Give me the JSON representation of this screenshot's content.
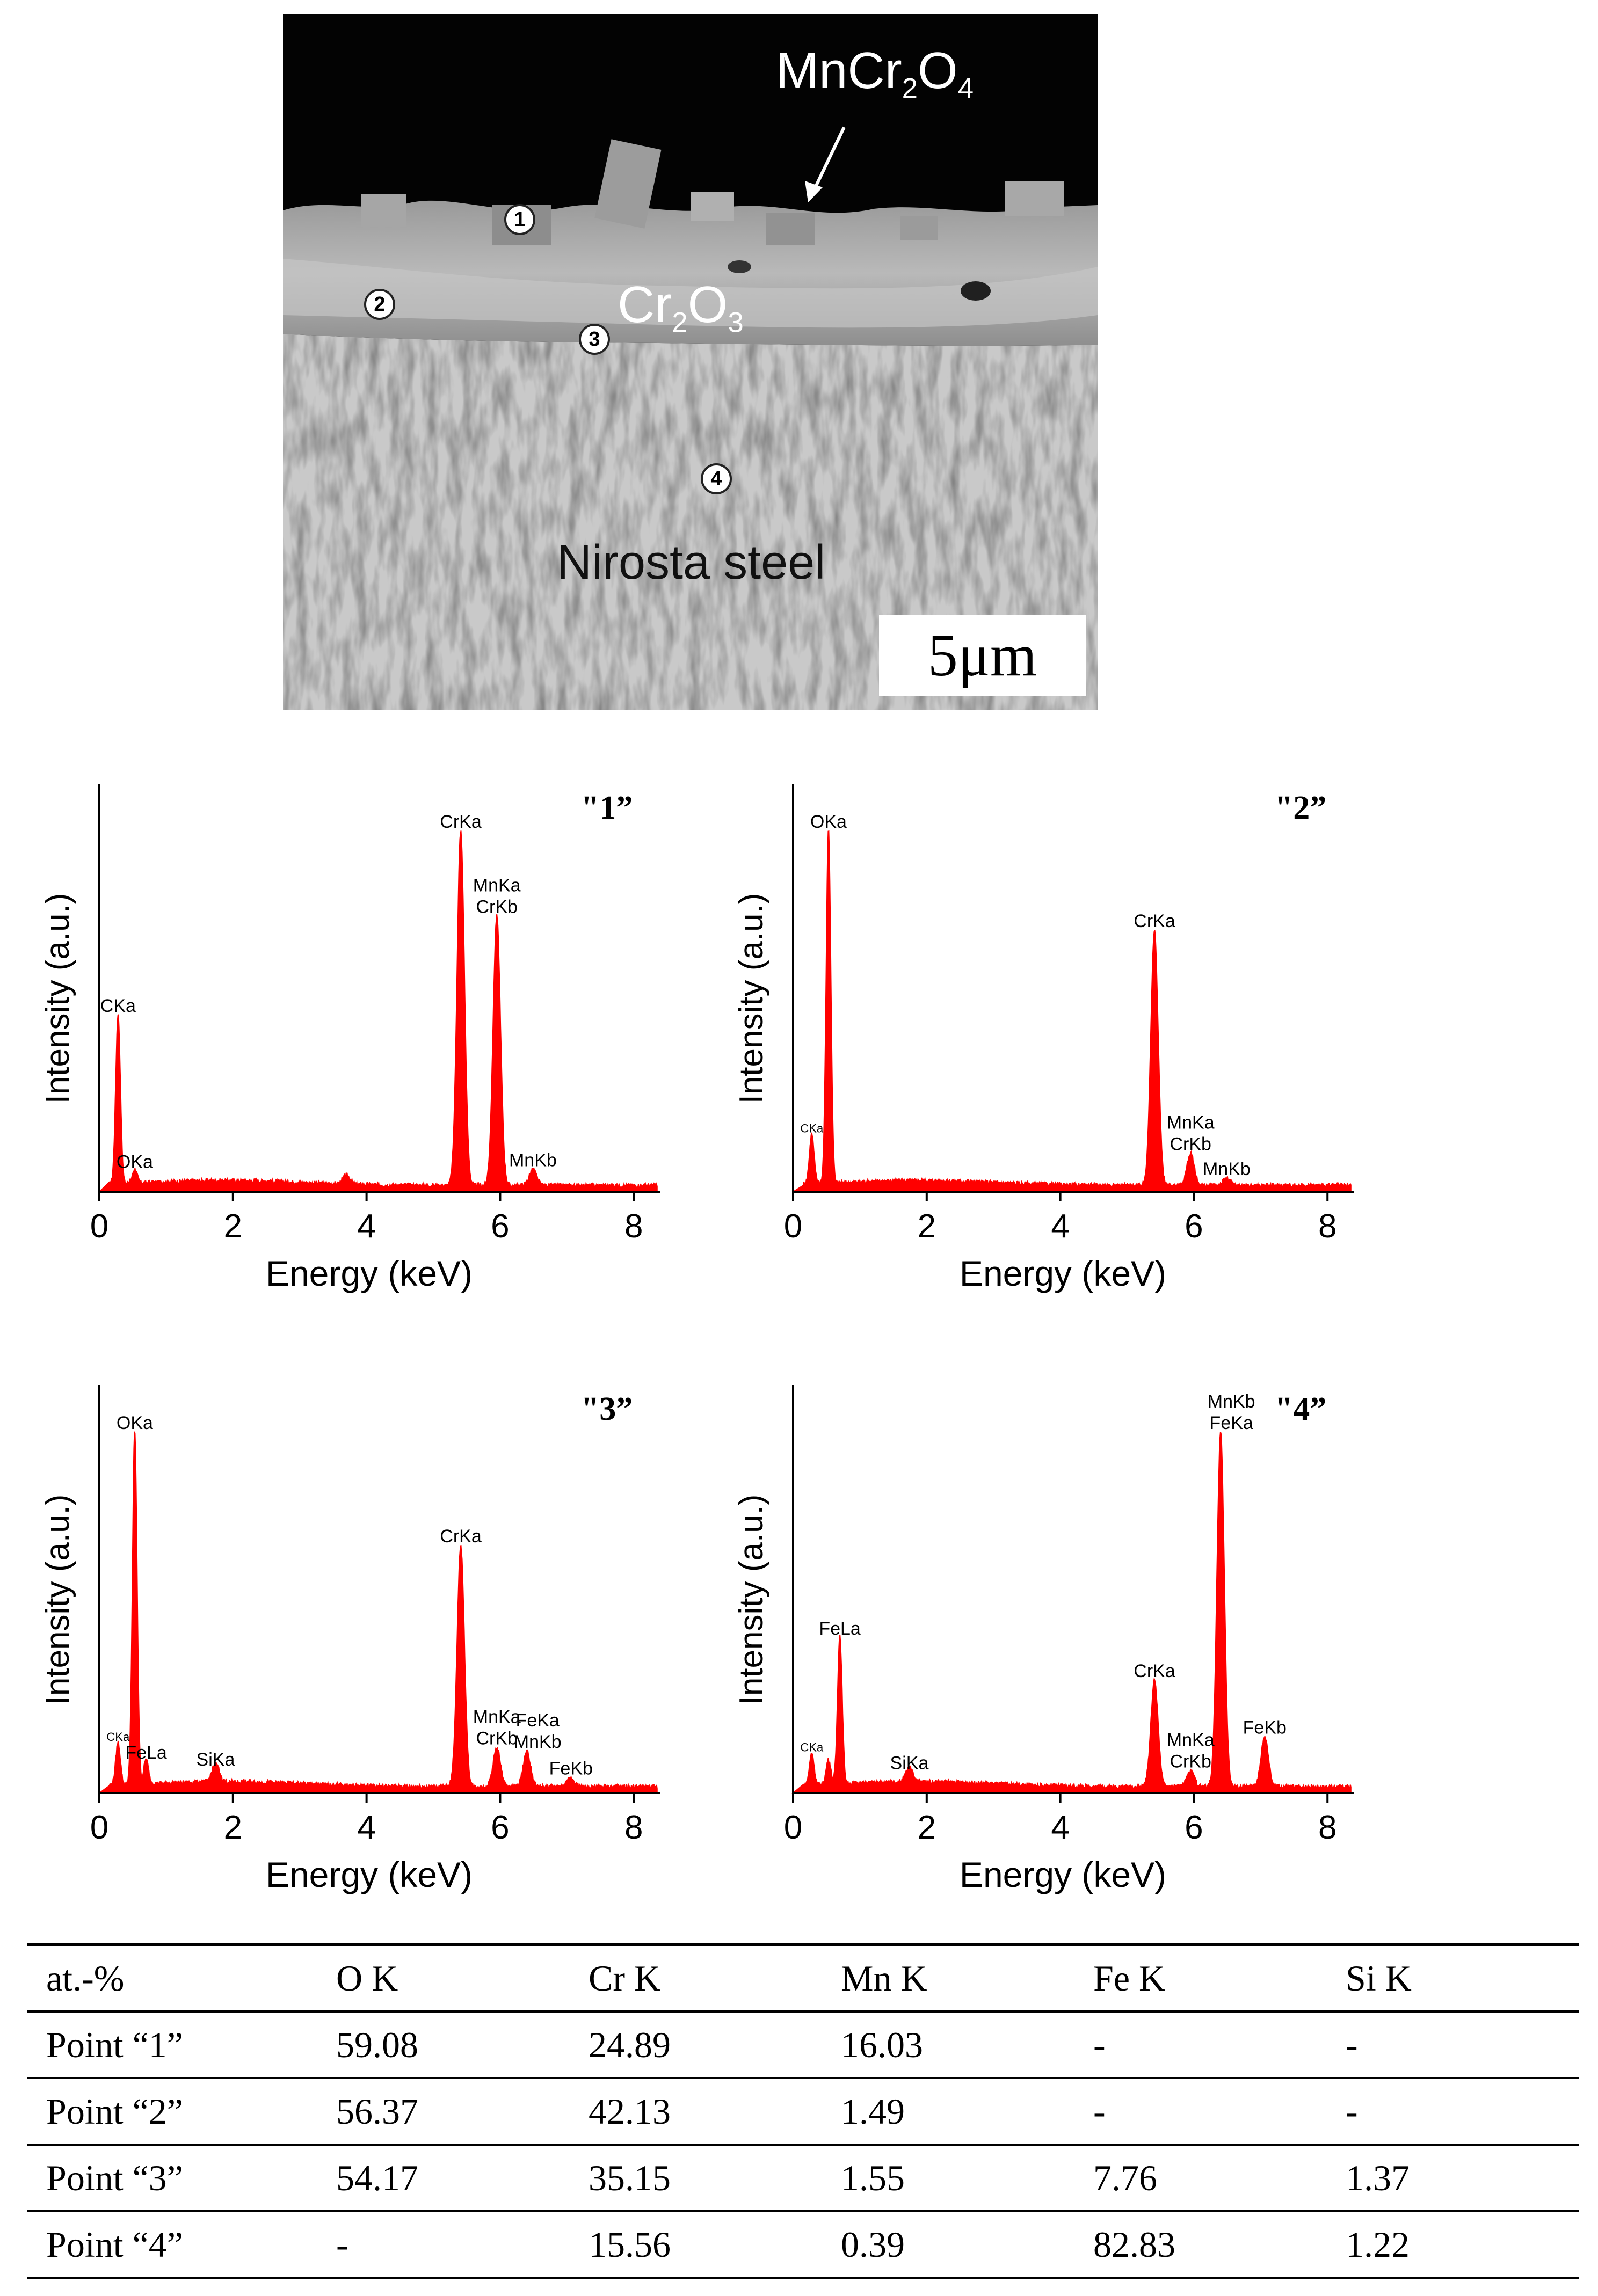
{
  "micrograph": {
    "labels": {
      "spinel": {
        "main": "MnCr",
        "sub1": "2",
        "mid": "O",
        "sub2": "4"
      },
      "chromia": {
        "main": "Cr",
        "sub1": "2",
        "mid": "O",
        "sub2": "3"
      },
      "substrate": "Nirosta steel"
    },
    "points": [
      "1",
      "2",
      "3",
      "4"
    ],
    "scale_bar": "5μm"
  },
  "chart_data": [
    {
      "type": "line",
      "title": "\"1”",
      "xlabel": "Energy (keV)",
      "ylabel": "Intensity (a.u.)",
      "xlim": [
        0,
        8.4
      ],
      "x_ticks": [
        0,
        2,
        4,
        6,
        8
      ],
      "color": "#ff0000",
      "peaks": [
        {
          "x": 0.28,
          "y": 0.48,
          "label": "CKa"
        },
        {
          "x": 0.53,
          "y": 0.04,
          "label": "OKa"
        },
        {
          "x": 3.7,
          "y": 0.025,
          "label": ""
        },
        {
          "x": 5.41,
          "y": 1.0,
          "label": "CrKa"
        },
        {
          "x": 5.95,
          "y": 0.76,
          "label": "MnKa\nCrKb"
        },
        {
          "x": 6.49,
          "y": 0.045,
          "label": "MnKb"
        }
      ]
    },
    {
      "type": "line",
      "title": "\"2”",
      "xlabel": "Energy (keV)",
      "ylabel": "Intensity (a.u.)",
      "xlim": [
        0,
        8.4
      ],
      "x_ticks": [
        0,
        2,
        4,
        6,
        8
      ],
      "color": "#ff0000",
      "peaks": [
        {
          "x": 0.28,
          "y": 0.14,
          "label": "CKa"
        },
        {
          "x": 0.53,
          "y": 1.0,
          "label": "OKa"
        },
        {
          "x": 5.41,
          "y": 0.72,
          "label": "CrKa"
        },
        {
          "x": 5.95,
          "y": 0.09,
          "label": "MnKa\nCrKb"
        },
        {
          "x": 6.49,
          "y": 0.02,
          "label": "MnKb"
        }
      ]
    },
    {
      "type": "line",
      "title": "\"3”",
      "xlabel": "Energy (keV)",
      "ylabel": "Intensity (a.u.)",
      "xlim": [
        0,
        8.4
      ],
      "x_ticks": [
        0,
        2,
        4,
        6,
        8
      ],
      "color": "#ff0000",
      "peaks": [
        {
          "x": 0.28,
          "y": 0.12,
          "label": "CKa"
        },
        {
          "x": 0.53,
          "y": 1.0,
          "label": "OKa"
        },
        {
          "x": 0.7,
          "y": 0.07,
          "label": "FeLa"
        },
        {
          "x": 1.74,
          "y": 0.05,
          "label": "SiKa"
        },
        {
          "x": 5.41,
          "y": 0.68,
          "label": "CrKa"
        },
        {
          "x": 5.95,
          "y": 0.11,
          "label": "MnKa\nCrKb"
        },
        {
          "x": 6.4,
          "y": 0.1,
          "label": "FeKa\nMnKb"
        },
        {
          "x": 7.06,
          "y": 0.025,
          "label": "FeKb"
        }
      ]
    },
    {
      "type": "line",
      "title": "\"4”",
      "xlabel": "Energy (keV)",
      "ylabel": "Intensity (a.u.)",
      "xlim": [
        0,
        8.4
      ],
      "x_ticks": [
        0,
        2,
        4,
        6,
        8
      ],
      "color": "#ff0000",
      "peaks": [
        {
          "x": 0.28,
          "y": 0.09,
          "label": "CKa"
        },
        {
          "x": 0.53,
          "y": 0.07,
          "label": ""
        },
        {
          "x": 0.7,
          "y": 0.42,
          "label": "FeLa"
        },
        {
          "x": 1.74,
          "y": 0.04,
          "label": "SiKa"
        },
        {
          "x": 5.41,
          "y": 0.3,
          "label": "CrKa"
        },
        {
          "x": 5.95,
          "y": 0.045,
          "label": "MnKa\nCrKb"
        },
        {
          "x": 6.4,
          "y": 1.0,
          "label": "MnKb\nFeKa"
        },
        {
          "x": 7.06,
          "y": 0.14,
          "label": "FeKb"
        }
      ]
    },
    {
      "type": "table",
      "columns": [
        "at.-%",
        "O K",
        "Cr K",
        "Mn K",
        "Fe K",
        "Si K"
      ],
      "rows": [
        [
          "Point “1”",
          "59.08",
          "24.89",
          "16.03",
          "-",
          "-"
        ],
        [
          "Point “2”",
          "56.37",
          "42.13",
          "1.49",
          "-",
          "-"
        ],
        [
          "Point “3”",
          "54.17",
          "35.15",
          "1.55",
          "7.76",
          "1.37"
        ],
        [
          "Point “4”",
          "-",
          "15.56",
          "0.39",
          "82.83",
          "1.22"
        ]
      ]
    }
  ]
}
